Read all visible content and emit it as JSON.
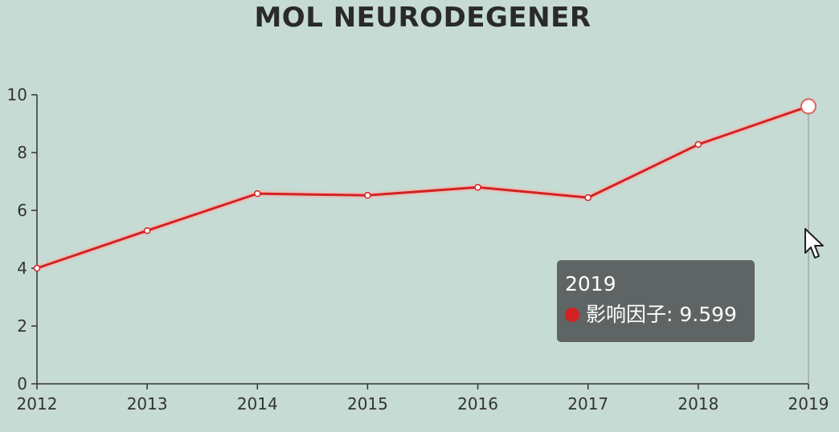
{
  "chart_data": {
    "type": "line",
    "title": "MOL NEURODEGENER",
    "x": [
      "2012",
      "2013",
      "2014",
      "2015",
      "2016",
      "2017",
      "2018",
      "2019"
    ],
    "series": [
      {
        "name": "影响因子",
        "values": [
          4.0,
          5.3,
          6.58,
          6.52,
          6.8,
          6.44,
          8.28,
          9.599
        ]
      }
    ],
    "yticks": [
      "0",
      "2",
      "4",
      "6",
      "8",
      "10"
    ],
    "ylim": [
      0,
      10
    ],
    "grid": false,
    "legend": "none",
    "line_color": "#d42222"
  },
  "tooltip": {
    "title": "2019",
    "label": "影响因子",
    "value": "9.599",
    "text": "影响因子: 9.599"
  }
}
